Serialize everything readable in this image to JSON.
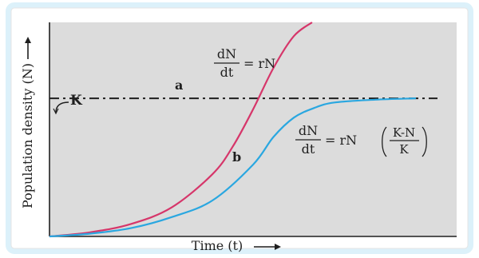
{
  "chart_data": {
    "type": "line",
    "xlabel": "Time (t)",
    "ylabel": "Population density (N)",
    "annotations": {
      "K": "K",
      "curve_a_letter": "a",
      "curve_b_letter": "b",
      "eq_a": {
        "dN": "dN",
        "dt": "dt",
        "rhs": "= rN"
      },
      "eq_b": {
        "dN": "dN",
        "dt": "dt",
        "rhs_prefix": "= rN",
        "num": "K-N",
        "den": "K"
      }
    },
    "carrying_capacity": 1,
    "x_range": [
      0,
      10
    ],
    "y_range": [
      0,
      1.55
    ],
    "grid": false,
    "legend": "none",
    "series": [
      {
        "label": "a",
        "kind": "exponential",
        "color": "#d6366a",
        "x": [
          0.0,
          1.0,
          2.0,
          3.0,
          4.0,
          4.5,
          5.0,
          5.5,
          6.0,
          6.45
        ],
        "y": [
          0.0,
          0.03,
          0.09,
          0.21,
          0.45,
          0.65,
          0.92,
          1.22,
          1.45,
          1.55
        ]
      },
      {
        "label": "b",
        "kind": "logistic",
        "color": "#2aa7e0",
        "x": [
          0.0,
          1.0,
          2.0,
          3.0,
          4.0,
          5.0,
          5.5,
          6.0,
          6.5,
          7.0,
          8.0,
          9.0
        ],
        "y": [
          0.0,
          0.02,
          0.06,
          0.14,
          0.26,
          0.52,
          0.72,
          0.86,
          0.93,
          0.97,
          0.99,
          1.0
        ]
      }
    ],
    "colors": {
      "plot_bg": "#dcdcdc",
      "axis": "#1f1f1f",
      "k_line": "#1f1f1f",
      "curve_a": "#d6366a",
      "curve_b": "#2aa7e0",
      "frame_glow": "#9ad6f2"
    }
  }
}
